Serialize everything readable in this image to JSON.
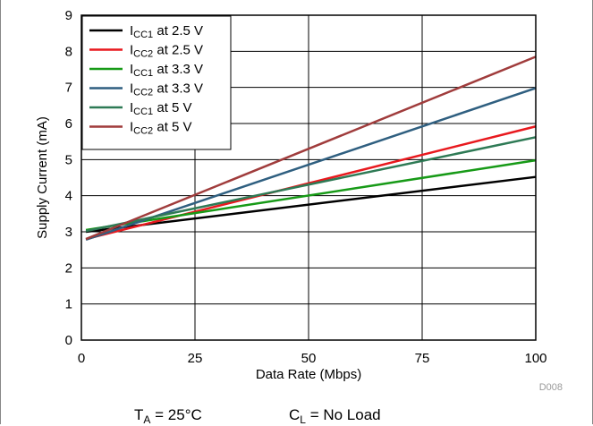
{
  "chart_data": {
    "type": "line",
    "xlabel": "Data Rate (Mbps)",
    "ylabel": "Supply Current (mA)",
    "xlim": [
      0,
      100
    ],
    "ylim": [
      0,
      9
    ],
    "xticks": [
      0,
      25,
      50,
      75,
      100
    ],
    "yticks": [
      0,
      1,
      2,
      3,
      4,
      5,
      6,
      7,
      8,
      9
    ],
    "grid": true,
    "legend_position": "top-left",
    "series": [
      {
        "name_main": "I",
        "name_sub": "CC1",
        "name_rest": " at 2.5 V",
        "color": "#000000",
        "x": [
          1,
          100
        ],
        "y": [
          3.0,
          4.52
        ]
      },
      {
        "name_main": "I",
        "name_sub": "CC2",
        "name_rest": " at 2.5 V",
        "color": "#e8191e",
        "x": [
          1,
          100
        ],
        "y": [
          2.8,
          5.92
        ]
      },
      {
        "name_main": "I",
        "name_sub": "CC1",
        "name_rest": " at 3.3 V",
        "color": "#179a17",
        "x": [
          1,
          100
        ],
        "y": [
          3.05,
          4.98
        ]
      },
      {
        "name_main": "I",
        "name_sub": "CC2",
        "name_rest": " at 3.3 V",
        "color": "#2f5f80",
        "x": [
          1,
          100
        ],
        "y": [
          2.78,
          6.98
        ]
      },
      {
        "name_main": "I",
        "name_sub": "CC1",
        "name_rest": " at 5 V",
        "color": "#2e7a55",
        "x": [
          1,
          100
        ],
        "y": [
          3.02,
          5.62
        ]
      },
      {
        "name_main": "I",
        "name_sub": "CC2",
        "name_rest": " at 5 V",
        "color": "#a03c3c",
        "x": [
          1,
          100
        ],
        "y": [
          2.8,
          7.85
        ]
      }
    ]
  },
  "figure_code": "D008",
  "conditions": {
    "ta_main": "T",
    "ta_sub": "A",
    "ta_rest": " = 25°C",
    "cl_main": "C",
    "cl_sub": "L",
    "cl_rest": " = No Load"
  }
}
